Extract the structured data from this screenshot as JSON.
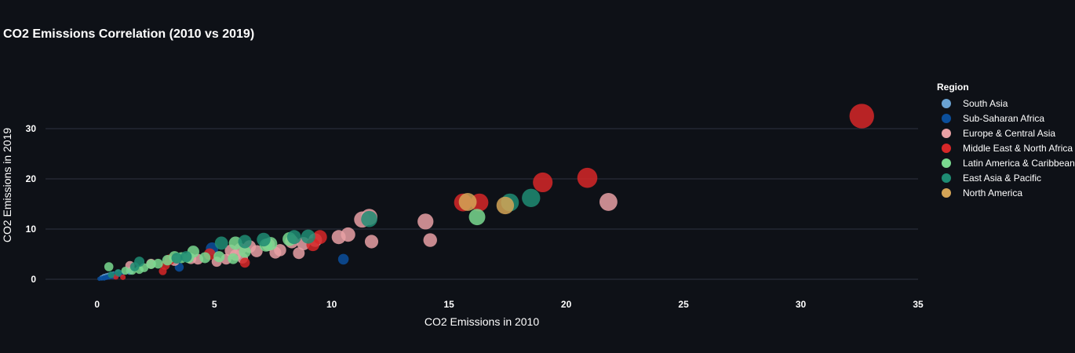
{
  "chart_data": {
    "type": "scatter",
    "title": "CO2 Emissions Correlation (2010 vs 2019)",
    "xlabel": "CO2 Emissions in 2010",
    "ylabel": "CO2 Emissions in 2019",
    "xlim": [
      -2.2,
      35
    ],
    "ylim": [
      -2.5,
      40
    ],
    "xticks": [
      0,
      5,
      10,
      15,
      20,
      25,
      30,
      35
    ],
    "yticks": [
      0,
      10,
      20,
      30
    ],
    "grid": true,
    "legend_title": "Region",
    "legend_position": "right",
    "background": "#0e1117",
    "series": [
      {
        "name": "South Asia",
        "color": "#6aa2d2",
        "points": [
          [
            0.2,
            0.3
          ],
          [
            0.3,
            0.5
          ],
          [
            0.4,
            0.6
          ],
          [
            0.5,
            0.7
          ],
          [
            0.6,
            0.8
          ],
          [
            0.7,
            0.9
          ],
          [
            0.9,
            1.2
          ],
          [
            1.4,
            1.7
          ],
          [
            0.3,
            0.4
          ]
        ]
      },
      {
        "name": "Sub-Saharan Africa",
        "color": "#0b4f9c",
        "points": [
          [
            0.1,
            0.1
          ],
          [
            0.2,
            0.2
          ],
          [
            0.3,
            0.3
          ],
          [
            0.4,
            0.4
          ],
          [
            0.5,
            0.5
          ],
          [
            0.6,
            0.7
          ],
          [
            0.8,
            0.9
          ],
          [
            1.0,
            1.1
          ],
          [
            3.5,
            2.4
          ],
          [
            4.9,
            6.1
          ],
          [
            10.5,
            4.0
          ],
          [
            0.3,
            0.2
          ],
          [
            0.7,
            0.6
          ]
        ]
      },
      {
        "name": "Europe & Central Asia",
        "color": "#e8a0a4",
        "points": [
          [
            1.4,
            2.7
          ],
          [
            2.3,
            3.1
          ],
          [
            3.3,
            3.7
          ],
          [
            4.3,
            4.0
          ],
          [
            5.1,
            3.5
          ],
          [
            5.5,
            4.0
          ],
          [
            5.9,
            4.8
          ],
          [
            6.1,
            6.0
          ],
          [
            6.5,
            6.5
          ],
          [
            6.8,
            5.6
          ],
          [
            7.3,
            6.9
          ],
          [
            7.6,
            5.3
          ],
          [
            7.8,
            5.8
          ],
          [
            8.3,
            7.5
          ],
          [
            8.6,
            5.2
          ],
          [
            8.8,
            7.1
          ],
          [
            9.3,
            7.8
          ],
          [
            10.3,
            8.4
          ],
          [
            10.7,
            8.9
          ],
          [
            11.3,
            11.9
          ],
          [
            11.6,
            12.4
          ],
          [
            11.7,
            7.5
          ],
          [
            14.0,
            11.5
          ],
          [
            14.2,
            7.8
          ],
          [
            21.8,
            15.4
          ],
          [
            4.0,
            4.1
          ],
          [
            5.7,
            5.7
          ],
          [
            6.2,
            4.2
          ]
        ]
      },
      {
        "name": "Middle East & North Africa",
        "color": "#d62728",
        "points": [
          [
            0.8,
            0.5
          ],
          [
            1.1,
            0.4
          ],
          [
            2.8,
            1.6
          ],
          [
            2.9,
            2.8
          ],
          [
            4.8,
            5.0
          ],
          [
            6.3,
            3.3
          ],
          [
            9.2,
            6.9
          ],
          [
            9.5,
            8.4
          ],
          [
            15.6,
            15.3
          ],
          [
            16.3,
            15.3
          ],
          [
            19.0,
            19.3
          ],
          [
            20.9,
            20.2
          ],
          [
            32.6,
            32.5
          ],
          [
            3.1,
            3.9
          ]
        ]
      },
      {
        "name": "Latin America & Caribbean",
        "color": "#79d98f",
        "points": [
          [
            0.5,
            2.5
          ],
          [
            1.2,
            1.7
          ],
          [
            1.5,
            1.7
          ],
          [
            2.0,
            2.3
          ],
          [
            2.3,
            3.0
          ],
          [
            2.6,
            3.1
          ],
          [
            3.0,
            3.8
          ],
          [
            3.3,
            4.5
          ],
          [
            3.6,
            4.3
          ],
          [
            3.9,
            4.3
          ],
          [
            4.1,
            5.5
          ],
          [
            4.6,
            4.3
          ],
          [
            5.2,
            4.5
          ],
          [
            5.8,
            4.1
          ],
          [
            5.9,
            7.2
          ],
          [
            6.3,
            5.5
          ],
          [
            7.2,
            6.8
          ],
          [
            7.4,
            7.1
          ],
          [
            8.2,
            8.0
          ],
          [
            16.2,
            12.4
          ],
          [
            1.8,
            1.9
          ]
        ]
      },
      {
        "name": "East Asia & Pacific",
        "color": "#1e8c73",
        "points": [
          [
            0.9,
            1.3
          ],
          [
            1.6,
            2.5
          ],
          [
            1.8,
            3.5
          ],
          [
            3.4,
            4.2
          ],
          [
            3.8,
            4.5
          ],
          [
            5.3,
            7.2
          ],
          [
            6.3,
            7.5
          ],
          [
            7.1,
            7.9
          ],
          [
            8.4,
            8.4
          ],
          [
            9.0,
            8.5
          ],
          [
            11.6,
            12.0
          ],
          [
            17.6,
            15.3
          ],
          [
            18.5,
            16.2
          ],
          [
            0.6,
            0.9
          ]
        ]
      },
      {
        "name": "North America",
        "color": "#d4a456",
        "points": [
          [
            15.8,
            15.4
          ],
          [
            17.4,
            14.7
          ]
        ]
      }
    ]
  }
}
